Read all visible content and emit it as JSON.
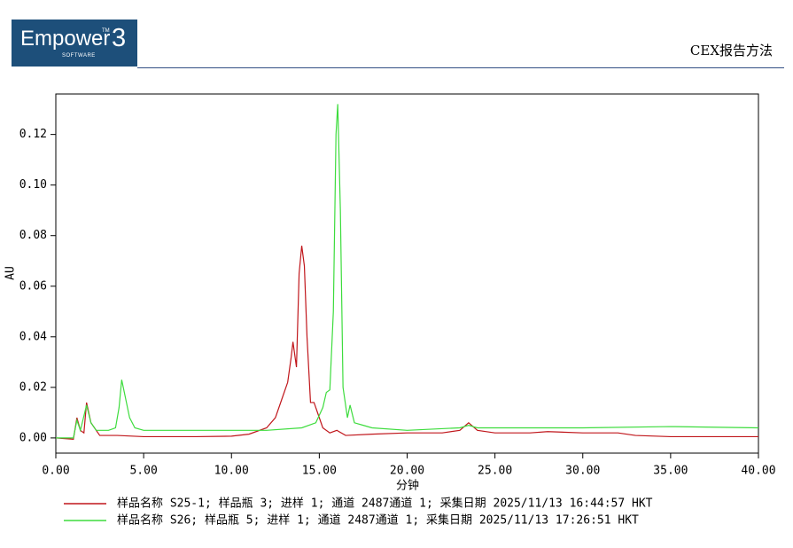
{
  "header": {
    "logo": "Empower",
    "logo_tm": "TM",
    "logo_version": "3",
    "logo_subtitle": "SOFTWARE",
    "report_title": "CEX报告方法"
  },
  "chart_data": {
    "type": "line",
    "x_label": "分钟",
    "y_label": "AU",
    "xlim": [
      0,
      40
    ],
    "ylim": [
      -0.006,
      0.136
    ],
    "xticks": [
      {
        "value": 0,
        "label": "0.00"
      },
      {
        "value": 5,
        "label": "5.00"
      },
      {
        "value": 10,
        "label": "10.00"
      },
      {
        "value": 15,
        "label": "15.00"
      },
      {
        "value": 20,
        "label": "20.00"
      },
      {
        "value": 25,
        "label": "25.00"
      },
      {
        "value": 30,
        "label": "30.00"
      },
      {
        "value": 35,
        "label": "35.00"
      },
      {
        "value": 40,
        "label": "40.00"
      }
    ],
    "yticks": [
      {
        "value": 0,
        "label": "0.00"
      },
      {
        "value": 0.02,
        "label": "0.02"
      },
      {
        "value": 0.04,
        "label": "0.04"
      },
      {
        "value": 0.06,
        "label": "0.06"
      },
      {
        "value": 0.08,
        "label": "0.08"
      },
      {
        "value": 0.1,
        "label": "0.10"
      },
      {
        "value": 0.12,
        "label": "0.12"
      }
    ],
    "series": [
      {
        "name": "样品名称 S25-1; 样品瓶 3; 进样 1; 通道 2487通道 1; 采集日期 2025/11/13 16:44:57 HKT",
        "color": "#c0161b",
        "x": [
          0,
          1.0,
          1.2,
          1.4,
          1.6,
          1.75,
          2.0,
          2.5,
          3.5,
          5,
          8,
          10,
          11,
          12,
          12.5,
          12.9,
          13.2,
          13.4,
          13.5,
          13.7,
          13.85,
          14.0,
          14.15,
          14.3,
          14.5,
          14.7,
          14.9,
          15.2,
          15.6,
          16,
          16.5,
          18,
          20,
          22,
          23,
          23.5,
          24,
          25,
          27,
          28,
          30,
          32,
          33,
          35,
          40
        ],
        "values": [
          0.0,
          -0.0005,
          0.008,
          0.003,
          0.002,
          0.014,
          0.006,
          0.001,
          0.001,
          0.0005,
          0.0005,
          0.0007,
          0.0015,
          0.004,
          0.008,
          0.016,
          0.022,
          0.032,
          0.038,
          0.028,
          0.065,
          0.076,
          0.068,
          0.04,
          0.014,
          0.014,
          0.01,
          0.004,
          0.002,
          0.003,
          0.001,
          0.0015,
          0.002,
          0.002,
          0.003,
          0.006,
          0.003,
          0.002,
          0.002,
          0.0025,
          0.002,
          0.002,
          0.001,
          0.0005,
          0.0005
        ]
      },
      {
        "name": "样品名称 S26; 样品瓶 5; 进样 1; 通道 2487通道 1; 采集日期 2025/11/13 17:26:51 HKT",
        "color": "#3ddc3d",
        "x": [
          0,
          1.0,
          1.2,
          1.4,
          1.75,
          2.0,
          2.3,
          3.0,
          3.4,
          3.6,
          3.75,
          3.9,
          4.2,
          4.5,
          5,
          8,
          12,
          14,
          14.8,
          15.2,
          15.4,
          15.6,
          15.8,
          15.95,
          16.05,
          16.2,
          16.35,
          16.6,
          16.75,
          17.0,
          17.5,
          18,
          20,
          23,
          23.5,
          24,
          30,
          35,
          40
        ],
        "values": [
          0.0,
          0.0,
          0.007,
          0.003,
          0.013,
          0.006,
          0.003,
          0.003,
          0.004,
          0.012,
          0.023,
          0.018,
          0.008,
          0.004,
          0.003,
          0.003,
          0.003,
          0.004,
          0.006,
          0.012,
          0.018,
          0.019,
          0.05,
          0.12,
          0.132,
          0.09,
          0.02,
          0.008,
          0.013,
          0.006,
          0.005,
          0.004,
          0.003,
          0.004,
          0.005,
          0.004,
          0.004,
          0.0045,
          0.004
        ]
      }
    ]
  }
}
